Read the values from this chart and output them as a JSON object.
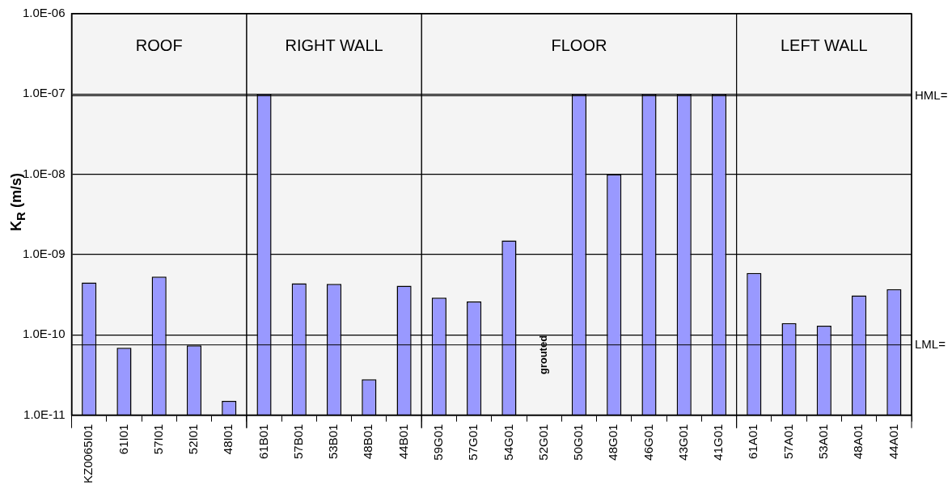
{
  "chart_data": {
    "type": "bar",
    "ylabel": "K$_{R}$ (m/s)",
    "categories": [
      "KZ0065I01",
      "61I01",
      "57I01",
      "52I01",
      "48I01",
      "61B01",
      "57B01",
      "53B01",
      "48B01",
      "44B01",
      "59G01",
      "57G01",
      "54G01",
      "52G01",
      "50G01",
      "48G01",
      "46G01",
      "43G01",
      "41G01",
      "61A01",
      "57A01",
      "53A01",
      "48A01",
      "44A01"
    ],
    "values": [
      4.5e-10,
      6.9e-11,
      5.3e-10,
      7.4e-11,
      1.5e-11,
      1e-07,
      4.4e-10,
      4.3e-10,
      2.8e-11,
      4.1e-10,
      2.9e-10,
      2.6e-10,
      1.5e-09,
      null,
      1e-07,
      1e-08,
      1e-07,
      1e-07,
      1e-07,
      5.9e-10,
      1.4e-10,
      1.3e-10,
      3.1e-10,
      3.7e-10
    ],
    "color": "#9999ff",
    "log": "y",
    "ylim": [
      1e-11,
      1e-06
    ],
    "yticks": [
      {
        "value": 1e-11,
        "label": "1.0E-11"
      },
      {
        "value": 1e-10,
        "label": "1.0E-10"
      },
      {
        "value": 1e-09,
        "label": "1.0E-09"
      },
      {
        "value": 1e-08,
        "label": "1.0E-08"
      },
      {
        "value": 1e-07,
        "label": "1.0E-07"
      },
      {
        "value": 1e-06,
        "label": "1.0E-06"
      }
    ],
    "grid": "y",
    "legend": false,
    "ref_lines": [
      {
        "axis": "y",
        "value": 9.5e-08,
        "label": "HML="
      },
      {
        "axis": "y",
        "value": 7.5e-11,
        "label": "LML="
      }
    ],
    "bands": [
      {
        "axis": "x",
        "from": "KZ0065I01",
        "to": "48I01",
        "label": "ROOF",
        "color": "#f4f4f4"
      },
      {
        "axis": "x",
        "from": "61B01",
        "to": "44B01",
        "label": "RIGHT WALL",
        "color": "#f4f4f4"
      },
      {
        "axis": "x",
        "from": "59G01",
        "to": "41G01",
        "label": "FLOOR",
        "color": "#f4f4f4"
      },
      {
        "axis": "x",
        "from": "61A01",
        "to": "44A01",
        "label": "LEFT WALL",
        "color": "#f4f4f4"
      }
    ],
    "annotations": [
      "grouted"
    ]
  }
}
